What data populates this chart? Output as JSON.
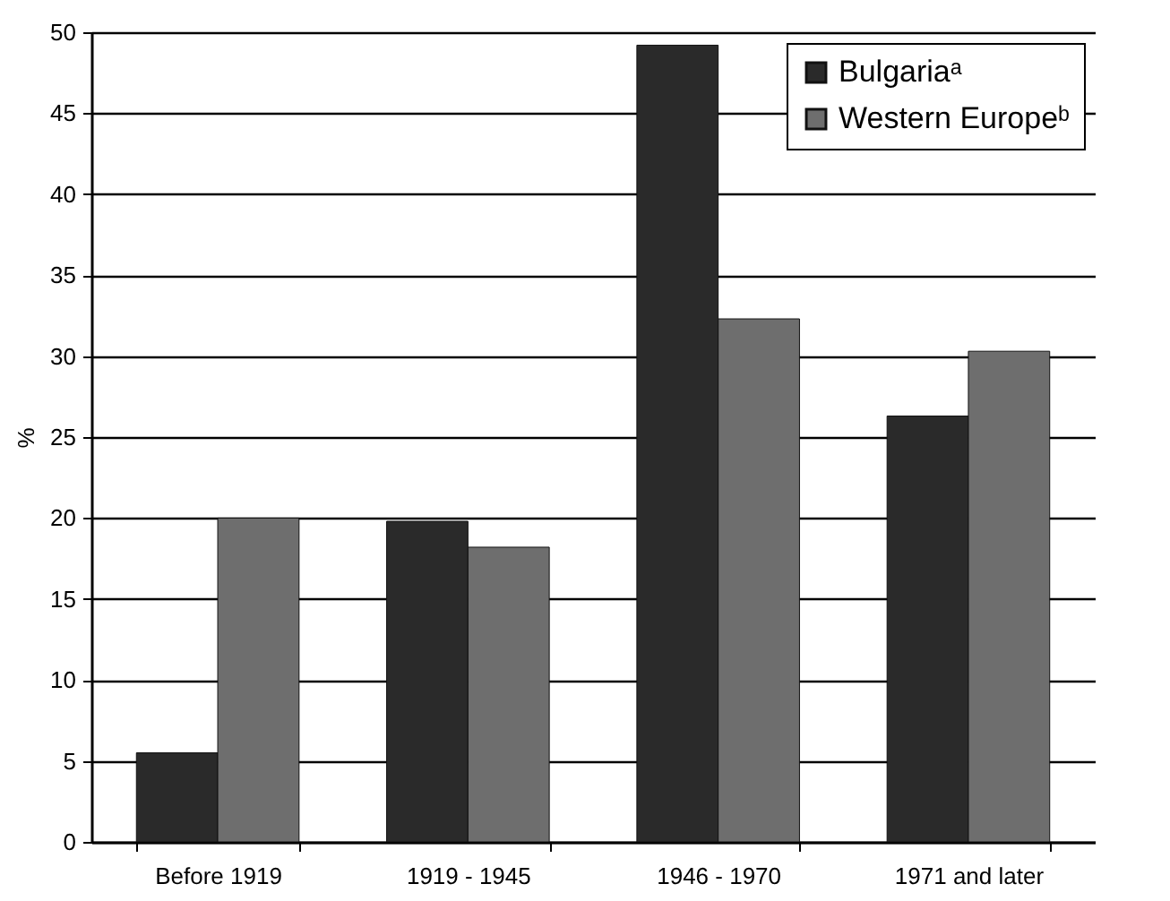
{
  "chart_data": {
    "type": "bar",
    "ylabel": "%",
    "categories": [
      "Before 1919",
      "1919 - 1945",
      "1946 - 1970",
      "1971  and later"
    ],
    "series": [
      {
        "name": "Bulgariaᵃ",
        "color": "#2a2a2a",
        "values": [
          5.5,
          19.8,
          49.2,
          26.3
        ]
      },
      {
        "name": "Western Europeᵇ",
        "color": "#6e6e6e",
        "values": [
          20,
          18.2,
          32.3,
          30.3
        ]
      }
    ],
    "ylim": [
      0,
      50
    ],
    "yticks": [
      0,
      5,
      10,
      15,
      20,
      25,
      30,
      35,
      40,
      45,
      50
    ],
    "grid": "y",
    "legend": "top right"
  }
}
